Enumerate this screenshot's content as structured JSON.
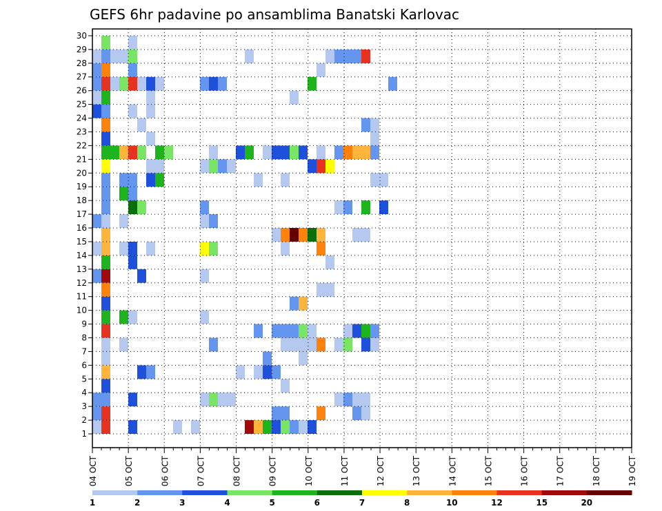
{
  "chart_data": {
    "type": "heatmap",
    "title": "GEFS 6hr padavine po ansamblima Banatski Karlovac",
    "x_tick_labels": [
      "04 OCT",
      "05 OCT",
      "06 OCT",
      "07 OCT",
      "08 OCT",
      "09 OCT",
      "10 OCT",
      "11 OCT",
      "12 OCT",
      "13 OCT",
      "14 OCT",
      "15 OCT",
      "16 OCT",
      "17 OCT",
      "18 OCT",
      "19 OCT"
    ],
    "y_tick_labels": [
      "1",
      "2",
      "3",
      "4",
      "5",
      "6",
      "7",
      "8",
      "9",
      "10",
      "11",
      "12",
      "13",
      "14",
      "15",
      "16",
      "17",
      "18",
      "19",
      "20",
      "21",
      "22",
      "23",
      "24",
      "25",
      "26",
      "27",
      "28",
      "29",
      "30"
    ],
    "legend": {
      "levels": [
        1,
        2,
        3,
        4,
        5,
        6,
        7,
        8,
        10,
        12,
        15,
        20
      ],
      "labels": [
        "1",
        "2",
        "3",
        "4",
        "5",
        "6",
        "7",
        "8",
        "10",
        "12",
        "15",
        "20"
      ],
      "colors": [
        "#b4c8f0",
        "#6496f0",
        "#1e50dc",
        "#78e664",
        "#1eb41e",
        "#0a6e0a",
        "#ffff00",
        "#ffb43c",
        "#ff820a",
        "#e6321e",
        "#a00a0a",
        "#640000"
      ]
    },
    "grid": true,
    "cells": [
      [
        0,
        1,
        0
      ],
      [
        1,
        1,
        9
      ],
      [
        4,
        1,
        2
      ],
      [
        9,
        1,
        0
      ],
      [
        11,
        1,
        0
      ],
      [
        17,
        1,
        10
      ],
      [
        18,
        1,
        7
      ],
      [
        19,
        1,
        4
      ],
      [
        20,
        1,
        2
      ],
      [
        21,
        1,
        3
      ],
      [
        22,
        1,
        1
      ],
      [
        23,
        1,
        0
      ],
      [
        24,
        1,
        2
      ],
      [
        0,
        2,
        1
      ],
      [
        1,
        2,
        9
      ],
      [
        20,
        2,
        1
      ],
      [
        21,
        2,
        1
      ],
      [
        25,
        2,
        8
      ],
      [
        29,
        2,
        1
      ],
      [
        30,
        2,
        0
      ],
      [
        0,
        3,
        1
      ],
      [
        1,
        3,
        1
      ],
      [
        4,
        3,
        2
      ],
      [
        12,
        3,
        0
      ],
      [
        13,
        3,
        3
      ],
      [
        14,
        3,
        0
      ],
      [
        15,
        3,
        0
      ],
      [
        27,
        3,
        0
      ],
      [
        28,
        3,
        1
      ],
      [
        29,
        3,
        0
      ],
      [
        30,
        3,
        0
      ],
      [
        1,
        4,
        2
      ],
      [
        21,
        4,
        0
      ],
      [
        1,
        5,
        7
      ],
      [
        5,
        5,
        2
      ],
      [
        6,
        5,
        1
      ],
      [
        16,
        5,
        0
      ],
      [
        18,
        5,
        0
      ],
      [
        19,
        5,
        2
      ],
      [
        20,
        5,
        1
      ],
      [
        1,
        6,
        0
      ],
      [
        19,
        6,
        1
      ],
      [
        23,
        6,
        0
      ],
      [
        1,
        7,
        0
      ],
      [
        3,
        7,
        0
      ],
      [
        13,
        7,
        1
      ],
      [
        21,
        7,
        0
      ],
      [
        22,
        7,
        0
      ],
      [
        23,
        7,
        0
      ],
      [
        24,
        7,
        0
      ],
      [
        25,
        7,
        8
      ],
      [
        27,
        7,
        0
      ],
      [
        28,
        7,
        3
      ],
      [
        30,
        7,
        2
      ],
      [
        31,
        7,
        0
      ],
      [
        1,
        8,
        9
      ],
      [
        18,
        8,
        1
      ],
      [
        20,
        8,
        1
      ],
      [
        21,
        8,
        1
      ],
      [
        22,
        8,
        1
      ],
      [
        23,
        8,
        3
      ],
      [
        24,
        8,
        0
      ],
      [
        28,
        8,
        0
      ],
      [
        29,
        8,
        2
      ],
      [
        30,
        8,
        4
      ],
      [
        31,
        8,
        1
      ],
      [
        1,
        9,
        4
      ],
      [
        3,
        9,
        4
      ],
      [
        4,
        9,
        0
      ],
      [
        12,
        9,
        0
      ],
      [
        1,
        10,
        2
      ],
      [
        22,
        10,
        1
      ],
      [
        23,
        10,
        7
      ],
      [
        1,
        11,
        8
      ],
      [
        25,
        11,
        0
      ],
      [
        26,
        11,
        0
      ],
      [
        0,
        12,
        1
      ],
      [
        1,
        12,
        10
      ],
      [
        5,
        12,
        2
      ],
      [
        12,
        12,
        0
      ],
      [
        1,
        13,
        4
      ],
      [
        4,
        13,
        2
      ],
      [
        26,
        13,
        0
      ],
      [
        0,
        14,
        0
      ],
      [
        1,
        14,
        7
      ],
      [
        3,
        14,
        0
      ],
      [
        4,
        14,
        2
      ],
      [
        6,
        14,
        0
      ],
      [
        12,
        14,
        6
      ],
      [
        13,
        14,
        3
      ],
      [
        21,
        14,
        0
      ],
      [
        25,
        14,
        8
      ],
      [
        1,
        15,
        7
      ],
      [
        20,
        15,
        0
      ],
      [
        21,
        15,
        8
      ],
      [
        22,
        15,
        11
      ],
      [
        23,
        15,
        8
      ],
      [
        24,
        15,
        5
      ],
      [
        25,
        15,
        7
      ],
      [
        29,
        15,
        0
      ],
      [
        30,
        15,
        0
      ],
      [
        0,
        16,
        1
      ],
      [
        1,
        16,
        0
      ],
      [
        3,
        16,
        0
      ],
      [
        12,
        16,
        0
      ],
      [
        13,
        16,
        1
      ],
      [
        1,
        17,
        1
      ],
      [
        4,
        17,
        5
      ],
      [
        5,
        17,
        3
      ],
      [
        12,
        17,
        1
      ],
      [
        27,
        17,
        0
      ],
      [
        28,
        17,
        1
      ],
      [
        30,
        17,
        4
      ],
      [
        32,
        17,
        2
      ],
      [
        1,
        18,
        1
      ],
      [
        3,
        18,
        4
      ],
      [
        4,
        18,
        1
      ],
      [
        1,
        19,
        1
      ],
      [
        3,
        19,
        1
      ],
      [
        4,
        19,
        1
      ],
      [
        6,
        19,
        2
      ],
      [
        7,
        19,
        4
      ],
      [
        18,
        19,
        0
      ],
      [
        21,
        19,
        0
      ],
      [
        31,
        19,
        0
      ],
      [
        32,
        19,
        0
      ],
      [
        1,
        20,
        6
      ],
      [
        6,
        20,
        0
      ],
      [
        7,
        20,
        0
      ],
      [
        12,
        20,
        0
      ],
      [
        13,
        20,
        3
      ],
      [
        14,
        20,
        1
      ],
      [
        15,
        20,
        0
      ],
      [
        24,
        20,
        2
      ],
      [
        25,
        20,
        9
      ],
      [
        26,
        20,
        6
      ],
      [
        1,
        21,
        4
      ],
      [
        2,
        21,
        4
      ],
      [
        3,
        21,
        7
      ],
      [
        4,
        21,
        9
      ],
      [
        5,
        21,
        3
      ],
      [
        7,
        21,
        4
      ],
      [
        8,
        21,
        3
      ],
      [
        13,
        21,
        0
      ],
      [
        16,
        21,
        2
      ],
      [
        17,
        21,
        4
      ],
      [
        19,
        21,
        0
      ],
      [
        20,
        21,
        2
      ],
      [
        21,
        21,
        2
      ],
      [
        22,
        21,
        3
      ],
      [
        23,
        21,
        2
      ],
      [
        25,
        21,
        0
      ],
      [
        27,
        21,
        1
      ],
      [
        28,
        21,
        8
      ],
      [
        29,
        21,
        7
      ],
      [
        30,
        21,
        7
      ],
      [
        31,
        21,
        1
      ],
      [
        1,
        22,
        2
      ],
      [
        6,
        22,
        0
      ],
      [
        31,
        22,
        0
      ],
      [
        1,
        23,
        8
      ],
      [
        5,
        23,
        0
      ],
      [
        30,
        23,
        1
      ],
      [
        31,
        23,
        0
      ],
      [
        0,
        24,
        2
      ],
      [
        1,
        24,
        1
      ],
      [
        4,
        24,
        0
      ],
      [
        6,
        24,
        0
      ],
      [
        0,
        25,
        0
      ],
      [
        1,
        25,
        4
      ],
      [
        6,
        25,
        0
      ],
      [
        22,
        25,
        0
      ],
      [
        0,
        26,
        1
      ],
      [
        1,
        26,
        9
      ],
      [
        2,
        26,
        0
      ],
      [
        3,
        26,
        3
      ],
      [
        4,
        26,
        9
      ],
      [
        5,
        26,
        0
      ],
      [
        6,
        26,
        2
      ],
      [
        7,
        26,
        0
      ],
      [
        12,
        26,
        1
      ],
      [
        13,
        26,
        2
      ],
      [
        14,
        26,
        1
      ],
      [
        24,
        26,
        4
      ],
      [
        33,
        26,
        1
      ],
      [
        0,
        27,
        1
      ],
      [
        1,
        27,
        8
      ],
      [
        4,
        27,
        1
      ],
      [
        25,
        27,
        0
      ],
      [
        0,
        28,
        0
      ],
      [
        1,
        28,
        1
      ],
      [
        2,
        28,
        0
      ],
      [
        3,
        28,
        0
      ],
      [
        4,
        28,
        3
      ],
      [
        17,
        28,
        0
      ],
      [
        26,
        28,
        0
      ],
      [
        27,
        28,
        1
      ],
      [
        28,
        28,
        1
      ],
      [
        29,
        28,
        1
      ],
      [
        30,
        28,
        9
      ],
      [
        1,
        29,
        3
      ],
      [
        4,
        29,
        0
      ]
    ]
  }
}
